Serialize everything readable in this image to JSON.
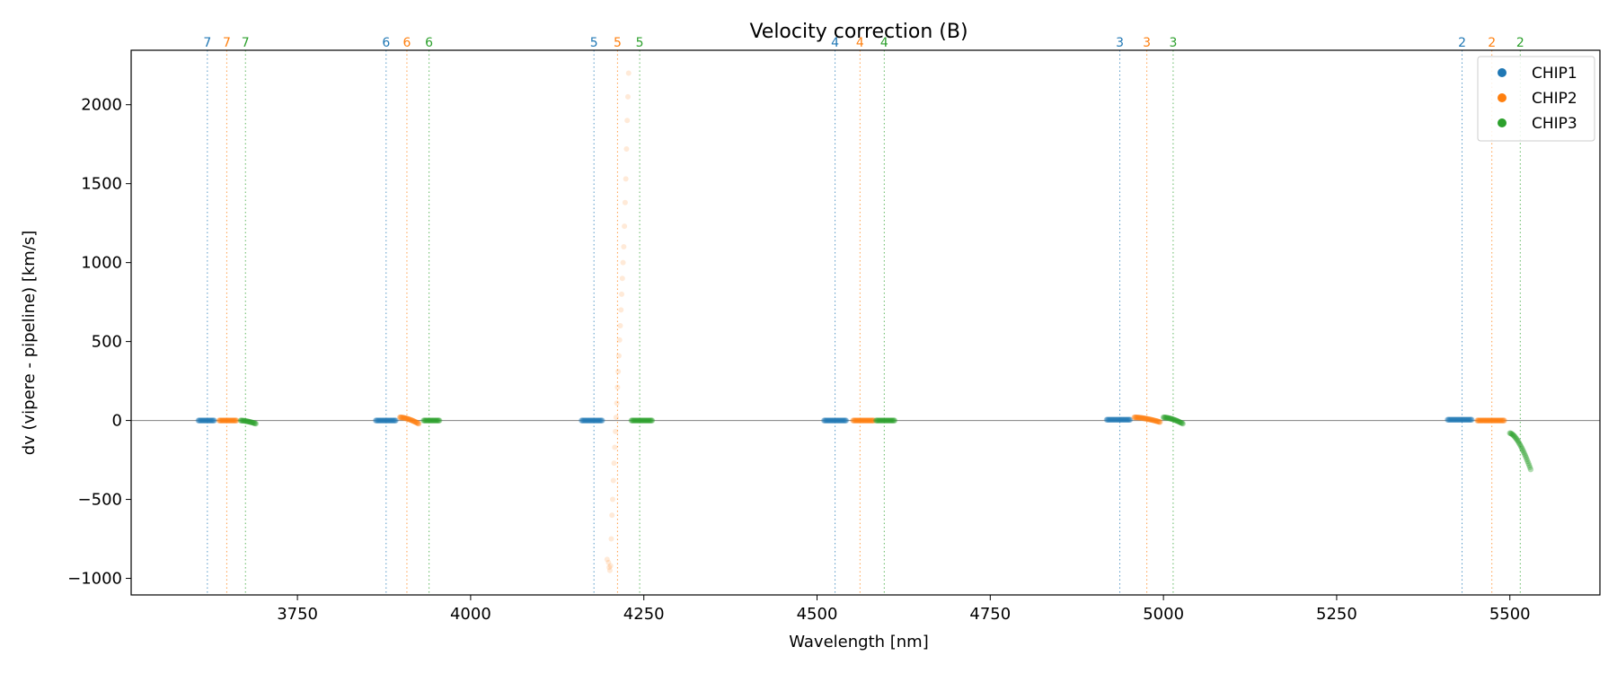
{
  "chart_data": {
    "type": "scatter",
    "title": "Velocity correction (B)",
    "xlabel": "Wavelength [nm]",
    "ylabel": "dv (vipere - pipeline) [km/s]",
    "xlim": [
      3510,
      5630
    ],
    "ylim": [
      -1105,
      2345
    ],
    "xticks": [
      3750,
      4000,
      4250,
      4500,
      4750,
      5000,
      5250,
      5500
    ],
    "xtick_labels": [
      "3750",
      "4000",
      "4250",
      "4500",
      "4750",
      "5000",
      "5250",
      "5500"
    ],
    "yticks": [
      -1000,
      -500,
      0,
      500,
      1000,
      1500,
      2000
    ],
    "ytick_labels": [
      "−1000",
      "−500",
      "0",
      "500",
      "1000",
      "1500",
      "2000"
    ],
    "hline": 0,
    "grid": false,
    "legend_position": "top-right",
    "colors": {
      "CHIP1": "#1f77b4",
      "CHIP2": "#ff7f0e",
      "CHIP3": "#2ca02c",
      "zero_line": "#808080"
    },
    "series": [
      {
        "name": "CHIP1",
        "color": "#1f77b4",
        "segments": [
          {
            "x_start": 3607,
            "x_end": 3630,
            "y_start": 0,
            "y_end": 0
          },
          {
            "x_start": 3863,
            "x_end": 3892,
            "y_start": 0,
            "y_end": 0
          },
          {
            "x_start": 4160,
            "x_end": 4190,
            "y_start": 0,
            "y_end": 0
          },
          {
            "x_start": 4510,
            "x_end": 4542,
            "y_start": 0,
            "y_end": 0
          },
          {
            "x_start": 4918,
            "x_end": 4952,
            "y_start": 5,
            "y_end": 5
          },
          {
            "x_start": 5410,
            "x_end": 5445,
            "y_start": 5,
            "y_end": 5
          }
        ]
      },
      {
        "name": "CHIP2",
        "color": "#ff7f0e",
        "segments": [
          {
            "x_start": 3637,
            "x_end": 3662,
            "y_start": 0,
            "y_end": 0
          },
          {
            "x_start": 3898,
            "x_end": 3925,
            "y_start": 20,
            "y_end": -20
          },
          {
            "x_start": 4552,
            "x_end": 4582,
            "y_start": 0,
            "y_end": 0
          },
          {
            "x_start": 4958,
            "x_end": 4995,
            "y_start": 20,
            "y_end": -10
          },
          {
            "x_start": 5453,
            "x_end": 5492,
            "y_start": 0,
            "y_end": 0
          }
        ],
        "outlier_points": [
          {
            "x": 4197,
            "y": -880
          },
          {
            "x": 4199,
            "y": -900
          },
          {
            "x": 4200,
            "y": -930
          },
          {
            "x": 4201,
            "y": -950
          },
          {
            "x": 4202,
            "y": -920
          },
          {
            "x": 4203,
            "y": -750
          },
          {
            "x": 4204,
            "y": -600
          },
          {
            "x": 4205,
            "y": -500
          },
          {
            "x": 4206,
            "y": -380
          },
          {
            "x": 4207,
            "y": -270
          },
          {
            "x": 4208,
            "y": -170
          },
          {
            "x": 4209,
            "y": -70
          },
          {
            "x": 4210,
            "y": 20
          },
          {
            "x": 4211,
            "y": 110
          },
          {
            "x": 4212,
            "y": 210
          },
          {
            "x": 4213,
            "y": 310
          },
          {
            "x": 4214,
            "y": 410
          },
          {
            "x": 4215,
            "y": 510
          },
          {
            "x": 4216,
            "y": 600
          },
          {
            "x": 4217,
            "y": 700
          },
          {
            "x": 4218,
            "y": 800
          },
          {
            "x": 4219,
            "y": 900
          },
          {
            "x": 4220,
            "y": 1000
          },
          {
            "x": 4221,
            "y": 1100
          },
          {
            "x": 4222,
            "y": 1230
          },
          {
            "x": 4223,
            "y": 1380
          },
          {
            "x": 4224,
            "y": 1530
          },
          {
            "x": 4225,
            "y": 1720
          },
          {
            "x": 4226,
            "y": 1900
          },
          {
            "x": 4227,
            "y": 2050
          },
          {
            "x": 4228,
            "y": 2200
          }
        ]
      },
      {
        "name": "CHIP3",
        "color": "#2ca02c",
        "segments": [
          {
            "x_start": 3668,
            "x_end": 3690,
            "y_start": 0,
            "y_end": -20
          },
          {
            "x_start": 3932,
            "x_end": 3955,
            "y_start": 0,
            "y_end": 0
          },
          {
            "x_start": 4232,
            "x_end": 4262,
            "y_start": 0,
            "y_end": 0
          },
          {
            "x_start": 4585,
            "x_end": 4612,
            "y_start": 0,
            "y_end": 0
          },
          {
            "x_start": 5000,
            "x_end": 5028,
            "y_start": 20,
            "y_end": -20
          },
          {
            "x_start": 5500,
            "x_end": 5530,
            "y_start": -80,
            "y_end": -310
          }
        ]
      }
    ],
    "order_markers": [
      {
        "x": 3620,
        "label": "7",
        "chip": "CHIP1"
      },
      {
        "x": 3648,
        "label": "7",
        "chip": "CHIP2"
      },
      {
        "x": 3675,
        "label": "7",
        "chip": "CHIP3"
      },
      {
        "x": 3878,
        "label": "6",
        "chip": "CHIP1"
      },
      {
        "x": 3908,
        "label": "6",
        "chip": "CHIP2"
      },
      {
        "x": 3940,
        "label": "6",
        "chip": "CHIP3"
      },
      {
        "x": 4178,
        "label": "5",
        "chip": "CHIP1"
      },
      {
        "x": 4212,
        "label": "5",
        "chip": "CHIP2"
      },
      {
        "x": 4244,
        "label": "5",
        "chip": "CHIP3"
      },
      {
        "x": 4526,
        "label": "4",
        "chip": "CHIP1"
      },
      {
        "x": 4562,
        "label": "4",
        "chip": "CHIP2"
      },
      {
        "x": 4597,
        "label": "4",
        "chip": "CHIP3"
      },
      {
        "x": 4937,
        "label": "3",
        "chip": "CHIP1"
      },
      {
        "x": 4976,
        "label": "3",
        "chip": "CHIP2"
      },
      {
        "x": 5014,
        "label": "3",
        "chip": "CHIP3"
      },
      {
        "x": 5431,
        "label": "2",
        "chip": "CHIP1"
      },
      {
        "x": 5474,
        "label": "2",
        "chip": "CHIP2"
      },
      {
        "x": 5515,
        "label": "2",
        "chip": "CHIP3"
      }
    ],
    "legend": [
      {
        "label": "CHIP1",
        "color": "#1f77b4"
      },
      {
        "label": "CHIP2",
        "color": "#ff7f0e"
      },
      {
        "label": "CHIP3",
        "color": "#2ca02c"
      }
    ]
  }
}
